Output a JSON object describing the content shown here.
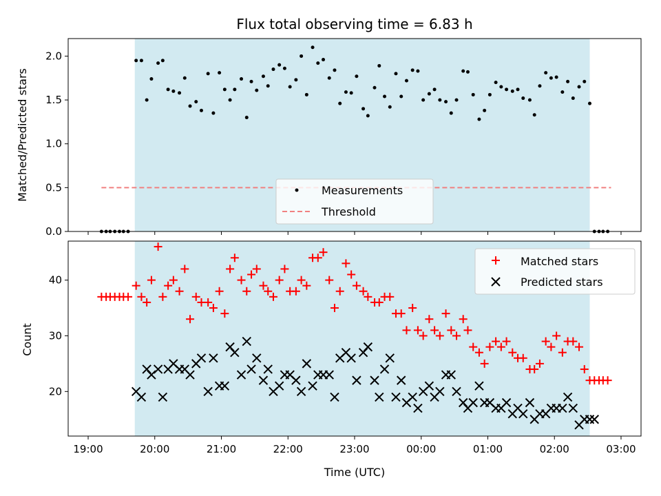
{
  "chart_data": [
    {
      "type": "scatter",
      "title": "Flux total observing time = 6.83 h",
      "ylabel": "Matched/Predicted stars",
      "xlim": [
        -0.3,
        8.3
      ],
      "ylim": [
        0,
        2.2
      ],
      "yticks": [
        0.0,
        0.5,
        1.0,
        1.5,
        2.0
      ],
      "ytick_labels": [
        "0.0",
        "0.5",
        "1.0",
        "1.5",
        "2.0"
      ],
      "shaded_region": [
        0.7,
        7.53
      ],
      "colors": {
        "shade": "#add8e6",
        "points": "#000000",
        "threshold": "#f08080"
      },
      "threshold": {
        "name": "Threshold",
        "value": 0.5,
        "x": [
          0.2,
          7.85
        ]
      },
      "legend": {
        "position": "lower center",
        "entries": [
          "Measurements",
          "Threshold"
        ]
      },
      "series": [
        {
          "name": "Measurements",
          "x": [
            0.2,
            0.27,
            0.33,
            0.4,
            0.47,
            0.53,
            0.6,
            0.72,
            0.8,
            0.88,
            0.95,
            1.05,
            1.12,
            1.2,
            1.28,
            1.37,
            1.45,
            1.53,
            1.62,
            1.7,
            1.8,
            1.88,
            1.97,
            2.05,
            2.13,
            2.2,
            2.3,
            2.38,
            2.45,
            2.53,
            2.63,
            2.7,
            2.78,
            2.87,
            2.95,
            3.03,
            3.12,
            3.2,
            3.28,
            3.37,
            3.45,
            3.53,
            3.62,
            3.7,
            3.78,
            3.87,
            3.95,
            4.03,
            4.13,
            4.2,
            4.3,
            4.37,
            4.45,
            4.53,
            4.62,
            4.7,
            4.78,
            4.87,
            4.95,
            5.03,
            5.12,
            5.2,
            5.28,
            5.37,
            5.45,
            5.53,
            5.63,
            5.7,
            5.78,
            5.87,
            5.95,
            6.03,
            6.12,
            6.2,
            6.28,
            6.37,
            6.45,
            6.53,
            6.63,
            6.7,
            6.78,
            6.87,
            6.95,
            7.03,
            7.12,
            7.2,
            7.28,
            7.37,
            7.45,
            7.53,
            7.6,
            7.67,
            7.73,
            7.8
          ],
          "values": [
            0,
            0,
            0,
            0,
            0,
            0,
            0,
            1.95,
            1.95,
            1.5,
            1.74,
            1.92,
            1.95,
            1.62,
            1.6,
            1.58,
            1.75,
            1.43,
            1.48,
            1.38,
            1.8,
            1.35,
            1.81,
            1.62,
            1.5,
            1.62,
            1.74,
            1.3,
            1.71,
            1.61,
            1.77,
            1.66,
            1.85,
            1.9,
            1.86,
            1.65,
            1.73,
            2.0,
            1.56,
            2.1,
            1.92,
            1.96,
            1.75,
            1.84,
            1.46,
            1.59,
            1.58,
            1.77,
            1.4,
            1.32,
            1.64,
            1.89,
            1.54,
            1.42,
            1.8,
            1.54,
            1.72,
            1.84,
            1.83,
            1.5,
            1.57,
            1.62,
            1.5,
            1.48,
            1.35,
            1.5,
            1.83,
            1.82,
            1.56,
            1.28,
            1.38,
            1.56,
            1.7,
            1.65,
            1.62,
            1.6,
            1.62,
            1.52,
            1.5,
            1.33,
            1.66,
            1.81,
            1.75,
            1.76,
            1.59,
            1.71,
            1.52,
            1.65,
            1.71,
            1.46,
            0,
            0,
            0,
            0
          ]
        }
      ]
    },
    {
      "type": "scatter",
      "xlabel": "Time (UTC)",
      "ylabel": "Count",
      "xlim": [
        -0.3,
        8.3
      ],
      "ylim": [
        12,
        47
      ],
      "yticks": [
        20,
        30,
        40
      ],
      "ytick_labels": [
        "20",
        "30",
        "40"
      ],
      "xticks": [
        0,
        1,
        2,
        3,
        4,
        5,
        6,
        7,
        8
      ],
      "xtick_labels": [
        "19:00",
        "20:00",
        "21:00",
        "22:00",
        "23:00",
        "00:00",
        "01:00",
        "02:00",
        "03:00"
      ],
      "shaded_region": [
        0.7,
        7.53
      ],
      "colors": {
        "shade": "#add8e6",
        "matched": "#ff0000",
        "predicted": "#000000"
      },
      "legend": {
        "position": "upper right",
        "entries": [
          "Matched stars",
          "Predicted stars"
        ]
      },
      "series": [
        {
          "name": "Matched stars",
          "marker": "plus",
          "x": [
            0.2,
            0.27,
            0.33,
            0.4,
            0.47,
            0.53,
            0.6,
            0.72,
            0.8,
            0.88,
            0.95,
            1.05,
            1.12,
            1.2,
            1.28,
            1.37,
            1.45,
            1.53,
            1.62,
            1.7,
            1.8,
            1.88,
            1.97,
            2.05,
            2.13,
            2.2,
            2.3,
            2.38,
            2.45,
            2.53,
            2.63,
            2.7,
            2.78,
            2.87,
            2.95,
            3.03,
            3.12,
            3.2,
            3.28,
            3.37,
            3.45,
            3.53,
            3.62,
            3.7,
            3.78,
            3.87,
            3.95,
            4.03,
            4.13,
            4.2,
            4.3,
            4.37,
            4.45,
            4.53,
            4.62,
            4.7,
            4.78,
            4.87,
            4.95,
            5.03,
            5.12,
            5.2,
            5.28,
            5.37,
            5.45,
            5.53,
            5.63,
            5.7,
            5.78,
            5.87,
            5.95,
            6.03,
            6.12,
            6.2,
            6.28,
            6.37,
            6.45,
            6.53,
            6.63,
            6.7,
            6.78,
            6.87,
            6.95,
            7.03,
            7.12,
            7.2,
            7.28,
            7.37,
            7.45,
            7.53,
            7.6,
            7.67,
            7.73,
            7.8
          ],
          "values": [
            37,
            37,
            37,
            37,
            37,
            37,
            37,
            39,
            37,
            36,
            40,
            46,
            37,
            39,
            40,
            38,
            42,
            33,
            37,
            36,
            36,
            35,
            38,
            34,
            42,
            44,
            40,
            38,
            41,
            42,
            39,
            38,
            37,
            40,
            42,
            38,
            38,
            40,
            39,
            44,
            44,
            45,
            40,
            35,
            38,
            43,
            41,
            39,
            38,
            37,
            36,
            36,
            37,
            37,
            34,
            34,
            31,
            35,
            31,
            30,
            33,
            31,
            30,
            34,
            31,
            30,
            33,
            31,
            28,
            27,
            25,
            28,
            29,
            28,
            29,
            27,
            26,
            26,
            24,
            24,
            25,
            29,
            28,
            30,
            27,
            29,
            29,
            28,
            24,
            22,
            22,
            22,
            22,
            22
          ]
        },
        {
          "name": "Predicted stars",
          "marker": "x",
          "x": [
            0.72,
            0.8,
            0.88,
            0.95,
            1.05,
            1.12,
            1.2,
            1.28,
            1.37,
            1.45,
            1.53,
            1.62,
            1.7,
            1.8,
            1.88,
            1.97,
            2.05,
            2.13,
            2.2,
            2.3,
            2.38,
            2.45,
            2.53,
            2.63,
            2.7,
            2.78,
            2.87,
            2.95,
            3.03,
            3.12,
            3.2,
            3.28,
            3.37,
            3.45,
            3.53,
            3.62,
            3.7,
            3.78,
            3.87,
            3.95,
            4.03,
            4.13,
            4.2,
            4.3,
            4.37,
            4.45,
            4.53,
            4.62,
            4.7,
            4.78,
            4.87,
            4.95,
            5.03,
            5.12,
            5.2,
            5.28,
            5.37,
            5.45,
            5.53,
            5.63,
            5.7,
            5.78,
            5.87,
            5.95,
            6.03,
            6.12,
            6.2,
            6.28,
            6.37,
            6.45,
            6.53,
            6.63,
            6.7,
            6.78,
            6.87,
            6.95,
            7.03,
            7.12,
            7.2,
            7.28,
            7.37,
            7.45,
            7.53,
            7.6
          ],
          "values": [
            20,
            19,
            24,
            23,
            24,
            19,
            24,
            25,
            24,
            24,
            23,
            25,
            26,
            20,
            26,
            21,
            21,
            28,
            27,
            23,
            29,
            24,
            26,
            22,
            24,
            20,
            21,
            23,
            23,
            22,
            20,
            25,
            21,
            23,
            23,
            23,
            19,
            26,
            27,
            26,
            22,
            27,
            28,
            22,
            19,
            24,
            26,
            19,
            22,
            18,
            19,
            17,
            20,
            21,
            19,
            20,
            23,
            23,
            20,
            18,
            17,
            18,
            21,
            18,
            18,
            17,
            17,
            18,
            16,
            17,
            16,
            18,
            15,
            16,
            16,
            17,
            17,
            17,
            19,
            17,
            14,
            15,
            15,
            15
          ]
        }
      ]
    }
  ]
}
